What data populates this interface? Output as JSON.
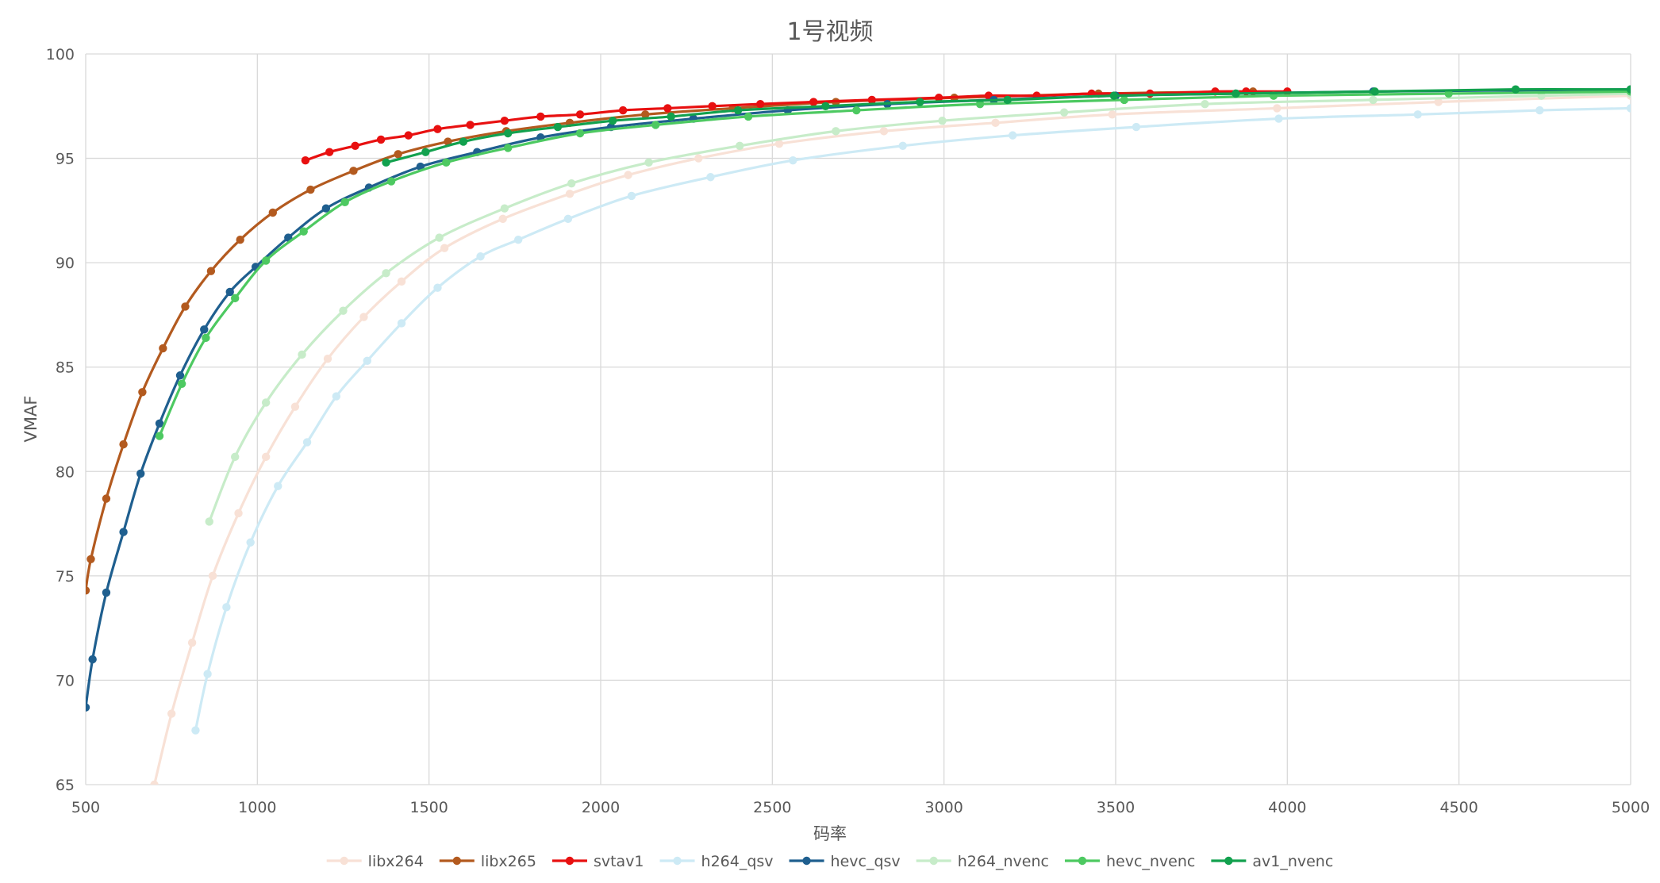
{
  "chart_data": {
    "type": "line",
    "title": "1号视频",
    "xlabel": "码率",
    "ylabel": "VMAF",
    "xlim": [
      500,
      5000
    ],
    "ylim": [
      65,
      100
    ],
    "x_ticks": [
      500,
      1000,
      1500,
      2000,
      2500,
      3000,
      3500,
      4000,
      4500,
      5000
    ],
    "y_ticks": [
      65,
      70,
      75,
      80,
      85,
      90,
      95,
      100
    ],
    "grid": true,
    "legend_position": "bottom",
    "series": [
      {
        "name": "libx264",
        "color": "#f8e1d6",
        "points": [
          [
            700,
            65.0
          ],
          [
            750,
            68.4
          ],
          [
            810,
            71.8
          ],
          [
            870,
            75.0
          ],
          [
            945,
            78.0
          ],
          [
            1025,
            80.7
          ],
          [
            1110,
            83.1
          ],
          [
            1205,
            85.4
          ],
          [
            1310,
            87.4
          ],
          [
            1420,
            89.1
          ],
          [
            1545,
            90.7
          ],
          [
            1715,
            92.1
          ],
          [
            1910,
            93.3
          ],
          [
            2080,
            94.2
          ],
          [
            2285,
            95.0
          ],
          [
            2520,
            95.7
          ],
          [
            2825,
            96.3
          ],
          [
            3150,
            96.7
          ],
          [
            3490,
            97.1
          ],
          [
            3970,
            97.4
          ],
          [
            4440,
            97.7
          ],
          [
            5000,
            98.0
          ]
        ]
      },
      {
        "name": "libx265",
        "color": "#b35a1f",
        "points": [
          [
            500,
            74.3
          ],
          [
            515,
            75.8
          ],
          [
            560,
            78.7
          ],
          [
            610,
            81.3
          ],
          [
            665,
            83.8
          ],
          [
            725,
            85.9
          ],
          [
            790,
            87.9
          ],
          [
            865,
            89.6
          ],
          [
            950,
            91.1
          ],
          [
            1045,
            92.4
          ],
          [
            1155,
            93.5
          ],
          [
            1280,
            94.4
          ],
          [
            1410,
            95.2
          ],
          [
            1555,
            95.8
          ],
          [
            1725,
            96.3
          ],
          [
            1910,
            96.7
          ],
          [
            2130,
            97.1
          ],
          [
            2385,
            97.4
          ],
          [
            2685,
            97.7
          ],
          [
            3030,
            97.9
          ],
          [
            3450,
            98.1
          ],
          [
            3900,
            98.2
          ]
        ]
      },
      {
        "name": "svtav1",
        "color": "#e81010",
        "points": [
          [
            1140,
            94.9
          ],
          [
            1210,
            95.3
          ],
          [
            1285,
            95.6
          ],
          [
            1360,
            95.9
          ],
          [
            1440,
            96.1
          ],
          [
            1525,
            96.4
          ],
          [
            1620,
            96.6
          ],
          [
            1720,
            96.8
          ],
          [
            1825,
            97.0
          ],
          [
            1940,
            97.1
          ],
          [
            2065,
            97.3
          ],
          [
            2195,
            97.4
          ],
          [
            2325,
            97.5
          ],
          [
            2465,
            97.6
          ],
          [
            2620,
            97.7
          ],
          [
            2790,
            97.8
          ],
          [
            2985,
            97.9
          ],
          [
            3130,
            98.0
          ],
          [
            3270,
            98.0
          ],
          [
            3430,
            98.1
          ],
          [
            3600,
            98.1
          ],
          [
            3790,
            98.2
          ],
          [
            3880,
            98.2
          ],
          [
            4000,
            98.2
          ]
        ]
      },
      {
        "name": "h264_qsv",
        "color": "#cdeaf5",
        "points": [
          [
            820,
            67.6
          ],
          [
            855,
            70.3
          ],
          [
            910,
            73.5
          ],
          [
            980,
            76.6
          ],
          [
            1060,
            79.3
          ],
          [
            1145,
            81.4
          ],
          [
            1230,
            83.6
          ],
          [
            1320,
            85.3
          ],
          [
            1420,
            87.1
          ],
          [
            1525,
            88.8
          ],
          [
            1650,
            90.3
          ],
          [
            1760,
            91.1
          ],
          [
            1905,
            92.1
          ],
          [
            2090,
            93.2
          ],
          [
            2320,
            94.1
          ],
          [
            2560,
            94.9
          ],
          [
            2880,
            95.6
          ],
          [
            3200,
            96.1
          ],
          [
            3560,
            96.5
          ],
          [
            3975,
            96.9
          ],
          [
            4380,
            97.1
          ],
          [
            4735,
            97.3
          ],
          [
            5000,
            97.4
          ]
        ]
      },
      {
        "name": "hevc_qsv",
        "color": "#1f5f8f",
        "points": [
          [
            500,
            68.7
          ],
          [
            520,
            71.0
          ],
          [
            560,
            74.2
          ],
          [
            610,
            77.1
          ],
          [
            660,
            79.9
          ],
          [
            715,
            82.3
          ],
          [
            775,
            84.6
          ],
          [
            845,
            86.8
          ],
          [
            920,
            88.6
          ],
          [
            995,
            89.8
          ],
          [
            1090,
            91.2
          ],
          [
            1200,
            92.6
          ],
          [
            1325,
            93.6
          ],
          [
            1475,
            94.6
          ],
          [
            1640,
            95.3
          ],
          [
            1825,
            96.0
          ],
          [
            2030,
            96.5
          ],
          [
            2270,
            96.9
          ],
          [
            2545,
            97.3
          ],
          [
            2835,
            97.6
          ],
          [
            3145,
            97.8
          ],
          [
            3500,
            98.0
          ],
          [
            3850,
            98.1
          ],
          [
            4250,
            98.2
          ],
          [
            5000,
            98.3
          ]
        ]
      },
      {
        "name": "h264_nvenc",
        "color": "#c7ecc9",
        "points": [
          [
            860,
            77.6
          ],
          [
            935,
            80.7
          ],
          [
            1025,
            83.3
          ],
          [
            1130,
            85.6
          ],
          [
            1250,
            87.7
          ],
          [
            1375,
            89.5
          ],
          [
            1530,
            91.2
          ],
          [
            1720,
            92.6
          ],
          [
            1915,
            93.8
          ],
          [
            2140,
            94.8
          ],
          [
            2405,
            95.6
          ],
          [
            2685,
            96.3
          ],
          [
            2995,
            96.8
          ],
          [
            3350,
            97.2
          ],
          [
            3760,
            97.6
          ],
          [
            4250,
            97.8
          ],
          [
            4740,
            98.0
          ],
          [
            5000,
            98.1
          ]
        ]
      },
      {
        "name": "hevc_nvenc",
        "color": "#4dc961",
        "points": [
          [
            715,
            81.7
          ],
          [
            780,
            84.2
          ],
          [
            850,
            86.4
          ],
          [
            935,
            88.3
          ],
          [
            1025,
            90.1
          ],
          [
            1135,
            91.5
          ],
          [
            1255,
            92.9
          ],
          [
            1390,
            93.9
          ],
          [
            1550,
            94.8
          ],
          [
            1730,
            95.5
          ],
          [
            1940,
            96.2
          ],
          [
            2160,
            96.6
          ],
          [
            2430,
            97.0
          ],
          [
            2745,
            97.3
          ],
          [
            3105,
            97.6
          ],
          [
            3525,
            97.8
          ],
          [
            3960,
            98.0
          ],
          [
            4470,
            98.1
          ],
          [
            5000,
            98.2
          ]
        ]
      },
      {
        "name": "av1_nvenc",
        "color": "#12a14e",
        "points": [
          [
            1375,
            94.8
          ],
          [
            1490,
            95.3
          ],
          [
            1600,
            95.8
          ],
          [
            1730,
            96.2
          ],
          [
            1875,
            96.5
          ],
          [
            2035,
            96.8
          ],
          [
            2205,
            97.0
          ],
          [
            2400,
            97.3
          ],
          [
            2655,
            97.5
          ],
          [
            2930,
            97.7
          ],
          [
            3185,
            97.8
          ],
          [
            3495,
            98.0
          ],
          [
            3850,
            98.1
          ],
          [
            4255,
            98.2
          ],
          [
            4665,
            98.3
          ],
          [
            5000,
            98.3
          ]
        ]
      }
    ]
  }
}
